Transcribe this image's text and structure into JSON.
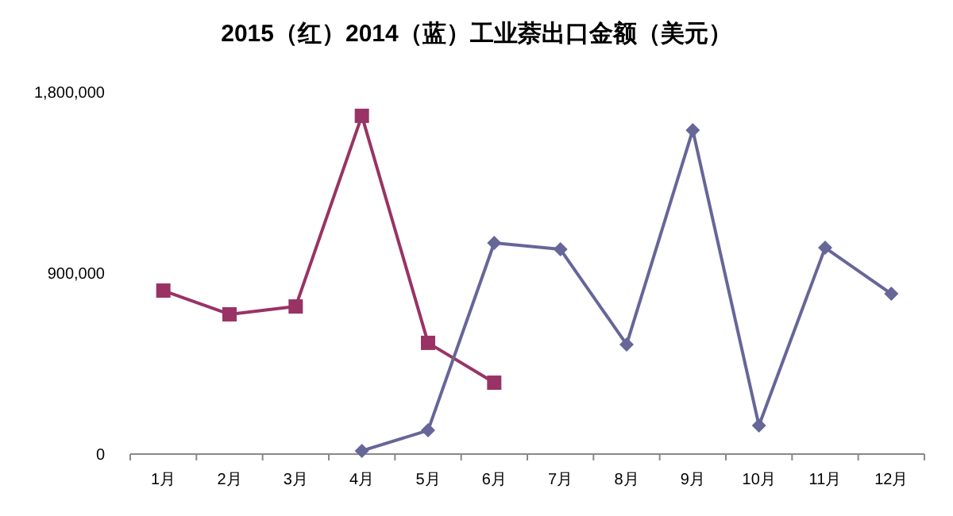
{
  "chart_data": {
    "type": "line",
    "title": "2015（红）2014（蓝）工业萘出口金额（美元）",
    "categories": [
      "1月",
      "2月",
      "3月",
      "4月",
      "5月",
      "6月",
      "7月",
      "8月",
      "9月",
      "10月",
      "11月",
      "12月"
    ],
    "series": [
      {
        "color": "#993366",
        "marker": "square",
        "values": [
          813000,
          695000,
          734000,
          1682000,
          553000,
          355000,
          null,
          null,
          null,
          null,
          null,
          null
        ]
      },
      {
        "color": "#666699",
        "marker": "diamond",
        "values": [
          null,
          null,
          null,
          16000,
          118000,
          1050000,
          1018000,
          545000,
          1611000,
          142000,
          1026000,
          797000
        ]
      }
    ],
    "ylim": [
      0,
      1800000
    ],
    "yticks": [
      {
        "value": 0,
        "label": "0"
      },
      {
        "value": 900000,
        "label": "900,000"
      },
      {
        "value": 1800000,
        "label": "1,800,000"
      }
    ],
    "grid": false,
    "line_style": "solid"
  }
}
